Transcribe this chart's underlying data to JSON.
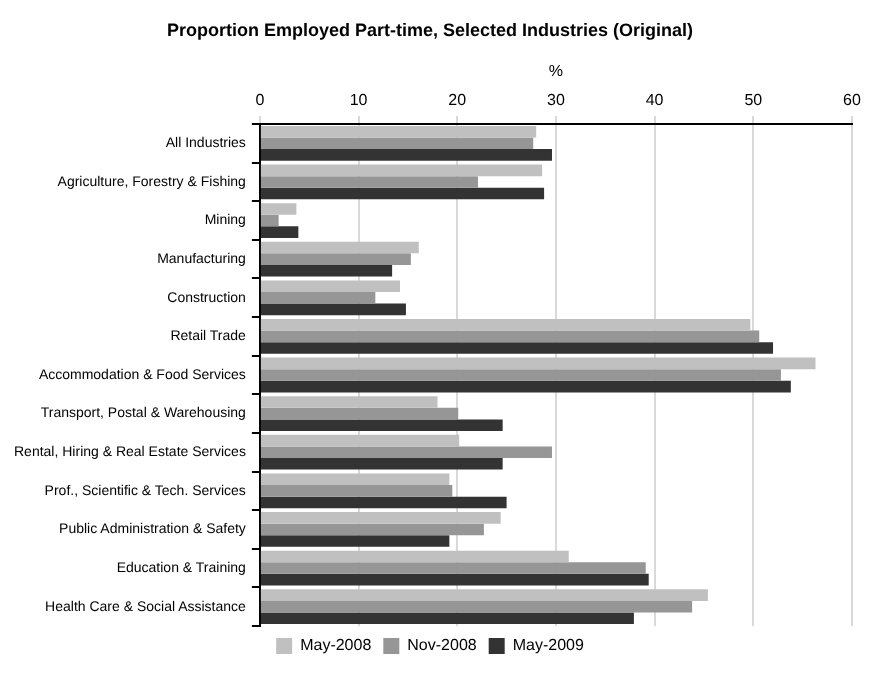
{
  "chart_data": {
    "type": "bar",
    "orientation": "horizontal",
    "title": "Proportion Employed Part-time, Selected Industries (Original)",
    "xlabel": "%",
    "categories": [
      "All Industries",
      "Agriculture, Forestry & Fishing",
      "Mining",
      "Manufacturing",
      "Construction",
      "Retail Trade",
      "Accommodation & Food Services",
      "Transport, Postal & Warehousing",
      "Rental, Hiring & Real Estate Services",
      "Prof., Scientific & Tech. Services",
      "Public Administration & Safety",
      "Education & Training",
      "Health Care & Social Assistance"
    ],
    "series": [
      {
        "name": "May-2008",
        "color": "#c0c0c0",
        "values": [
          28.0,
          28.6,
          3.7,
          16.1,
          14.2,
          49.7,
          56.3,
          18.0,
          20.2,
          19.2,
          24.4,
          31.3,
          45.4
        ]
      },
      {
        "name": "Nov-2008",
        "color": "#969696",
        "values": [
          27.7,
          22.1,
          1.9,
          15.3,
          11.7,
          50.6,
          52.8,
          20.1,
          29.6,
          19.5,
          22.7,
          39.1,
          43.8
        ]
      },
      {
        "name": "May-2009",
        "color": "#333333",
        "values": [
          29.6,
          28.8,
          3.9,
          13.4,
          14.8,
          52.0,
          53.8,
          24.6,
          24.6,
          25.0,
          19.2,
          39.4,
          37.9
        ]
      }
    ],
    "xlim": [
      0,
      60
    ],
    "xticks": [
      0,
      10,
      20,
      30,
      40,
      50,
      60
    ],
    "grid": "x",
    "legend": "bottom"
  }
}
